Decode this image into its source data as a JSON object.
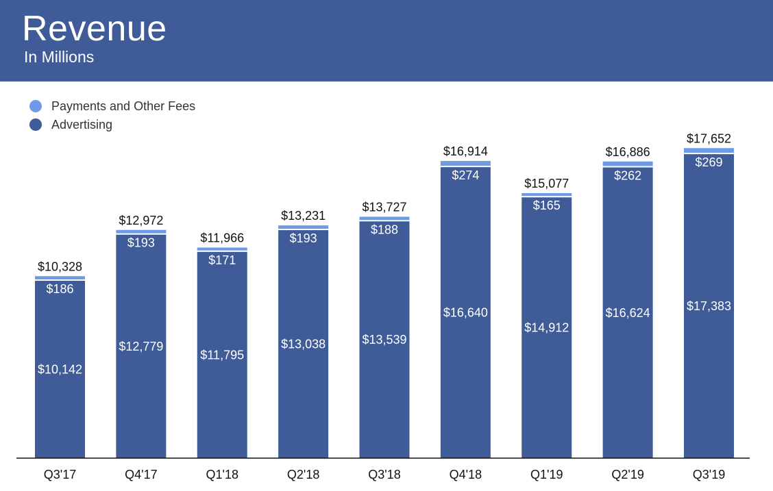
{
  "header": {
    "title": "Revenue",
    "subtitle": "In Millions"
  },
  "legend": [
    {
      "label": "Payments and Other Fees",
      "color": "#6e9ae6"
    },
    {
      "label": "Advertising",
      "color": "#3f5b98"
    }
  ],
  "chart_data": {
    "type": "bar",
    "stacked": true,
    "title": "Revenue",
    "subtitle": "In Millions",
    "xlabel": "",
    "ylabel": "",
    "ylim": [
      0,
      20000
    ],
    "grid": false,
    "legend_position": "top-left",
    "categories": [
      "Q3'17",
      "Q4'17",
      "Q1'18",
      "Q2'18",
      "Q3'18",
      "Q4'18",
      "Q1'19",
      "Q2'19",
      "Q3'19"
    ],
    "series": [
      {
        "name": "Advertising",
        "color": "#3f5b98",
        "values": [
          10142,
          12779,
          11795,
          13038,
          13539,
          16640,
          14912,
          16624,
          17383
        ],
        "labels": [
          "$10,142",
          "$12,779",
          "$11,795",
          "$13,038",
          "$13,539",
          "$16,640",
          "$14,912",
          "$16,624",
          "$17,383"
        ]
      },
      {
        "name": "Payments and Other Fees",
        "color": "#6e9ae6",
        "values": [
          186,
          193,
          171,
          193,
          188,
          274,
          165,
          262,
          269
        ],
        "labels": [
          "$186",
          "$193",
          "$171",
          "$193",
          "$188",
          "$274",
          "$165",
          "$262",
          "$269"
        ]
      }
    ],
    "totals": [
      10328,
      12972,
      11966,
      13231,
      13727,
      16914,
      15077,
      16886,
      17652
    ],
    "total_labels": [
      "$10,328",
      "$12,972",
      "$11,966",
      "$13,231",
      "$13,727",
      "$16,914",
      "$15,077",
      "$16,886",
      "$17,652"
    ]
  }
}
